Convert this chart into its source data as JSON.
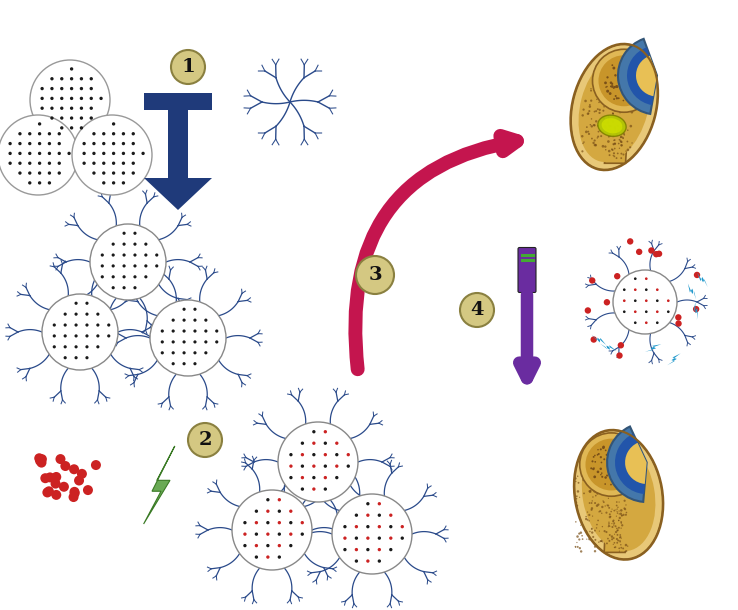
{
  "bg_color": "#ffffff",
  "msn_dot_color": "#1a1a1a",
  "aptamer_color": "#2a4a8a",
  "arrow1_color": "#1f3a7a",
  "arrow3_color": "#c4154e",
  "arrow4_color": "#6a2ca0",
  "step_circle_fill": "#d4c882",
  "step_circle_edge": "#8a8040",
  "ampicillin_color": "#cc2222",
  "lightning_color": "#6aaa55",
  "blue_particle": "#2299cc",
  "purple_vial": "#6a2ca0",
  "green_stripe": "#44aa33",
  "bone_outer": "#d4a855",
  "bone_mid": "#c89535",
  "bone_dark": "#8a6020",
  "bone_socket_blue": "#4477aa",
  "infection_yellow": "#b8cc00",
  "figsize": [
    7.38,
    6.1
  ],
  "dpi": 100
}
